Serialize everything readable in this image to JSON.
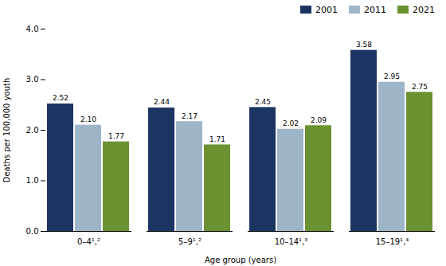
{
  "chart_data": {
    "type": "bar",
    "categories": [
      "0–4¹,²",
      "5–9¹,²",
      "10–14¹,³",
      "15–19¹,⁴"
    ],
    "series": [
      {
        "name": "2001",
        "color": "#1c3461",
        "values": [
          2.52,
          2.44,
          2.45,
          3.58
        ],
        "value_labels": [
          "2.52",
          "2.44",
          "2.45",
          "3.58"
        ]
      },
      {
        "name": "2011",
        "color": "#9eb5c8",
        "values": [
          2.1,
          2.17,
          2.02,
          2.95
        ],
        "value_labels": [
          "2.10",
          "2.17",
          "2.02",
          "2.95"
        ]
      },
      {
        "name": "2021",
        "color": "#6b9130",
        "values": [
          1.77,
          1.71,
          2.09,
          2.75
        ],
        "value_labels": [
          "1.77",
          "1.71",
          "2.09",
          "2.75"
        ]
      }
    ],
    "xlabel": "Age group (years)",
    "ylabel": "Deaths per 100,000 youth",
    "ylim": [
      0,
      4
    ],
    "yticks": [
      0,
      1,
      2,
      3,
      4
    ],
    "grid": false,
    "legend": "upper right",
    "data_labels": true
  }
}
